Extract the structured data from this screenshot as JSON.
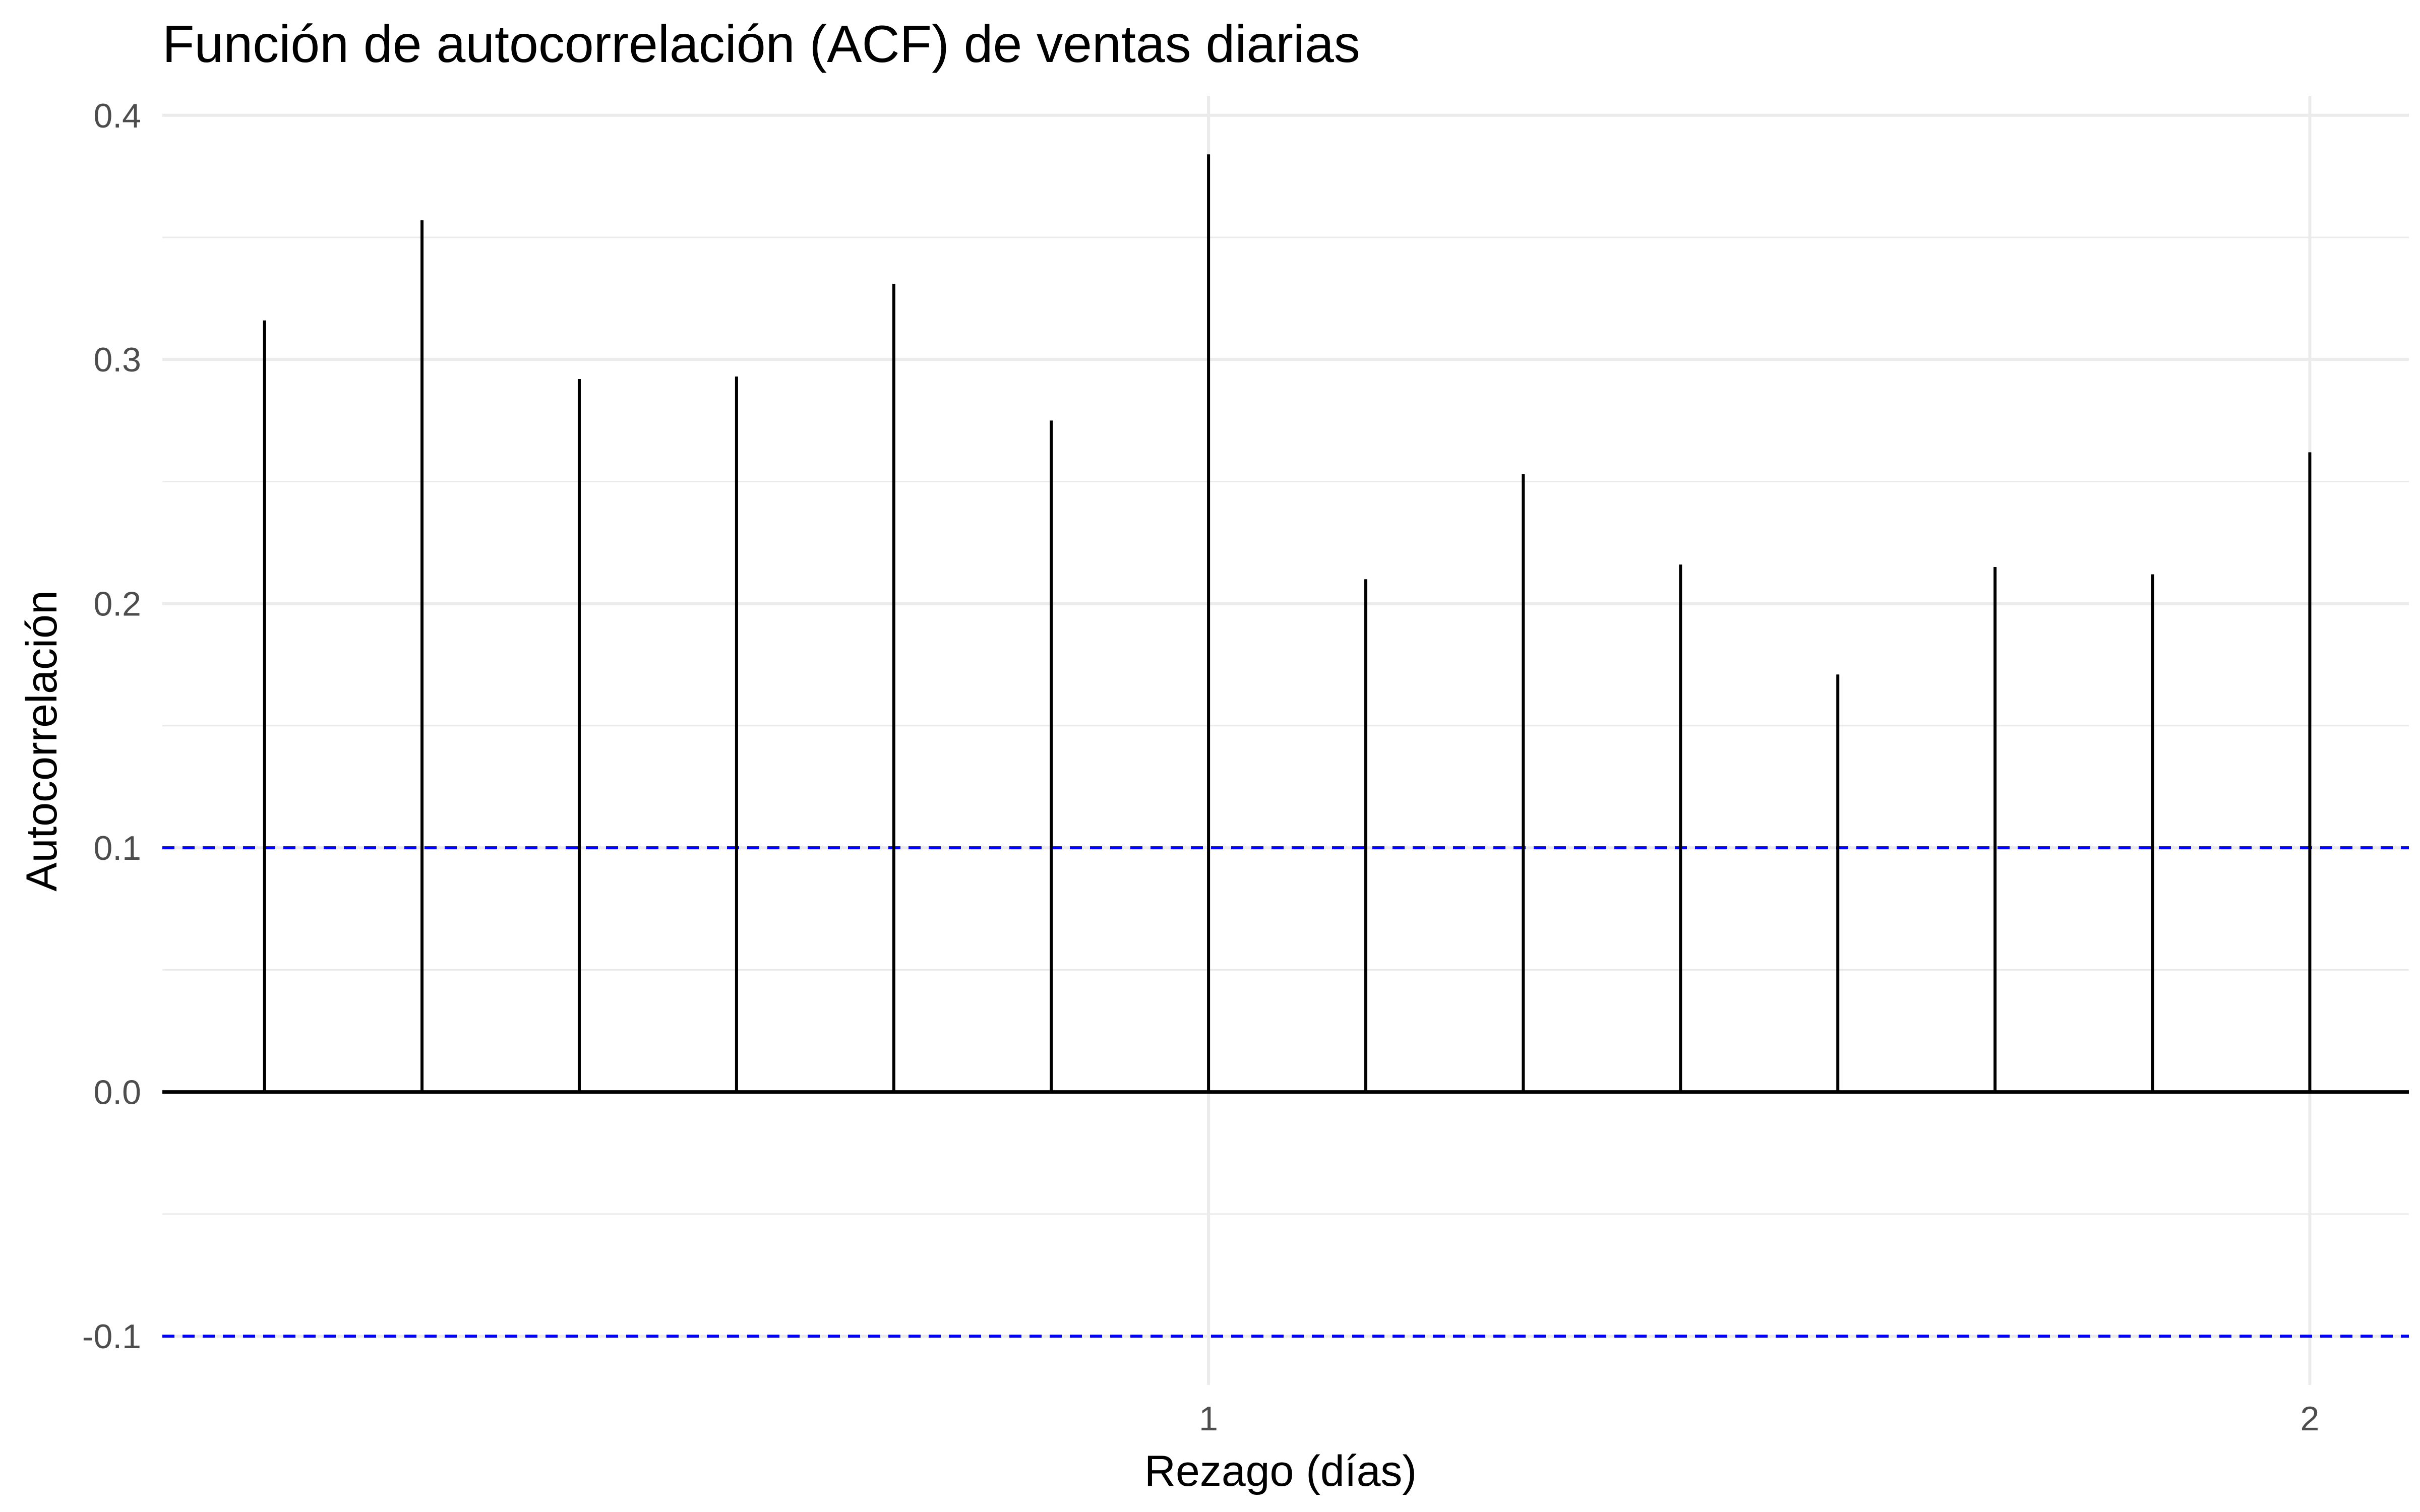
{
  "chart_data": {
    "type": "bar",
    "title": "Función de autocorrelación (ACF) de ventas diarias",
    "xlabel": "Rezago (días)",
    "ylabel": "Autocorrelación",
    "x": [
      0.0714,
      0.1429,
      0.2143,
      0.2857,
      0.3571,
      0.4286,
      0.5,
      0.5714,
      0.6429,
      0.7143,
      0.7857,
      0.8571,
      0.9286,
      1.0
    ],
    "values": [
      0.316,
      0.357,
      0.292,
      0.293,
      0.331,
      0.275,
      0.384,
      0.21,
      0.253,
      0.216,
      0.171,
      0.215,
      0.212,
      0.262
    ],
    "x_ticks": [
      0.5,
      1.0
    ],
    "x_tick_labels": [
      "1",
      "2"
    ],
    "y_ticks": [
      -0.1,
      0.0,
      0.1,
      0.2,
      0.3,
      0.4
    ],
    "y_tick_labels": [
      "-0.1",
      "0.0",
      "0.1",
      "0.2",
      "0.3",
      "0.4"
    ],
    "ylim": [
      -0.12,
      0.408
    ],
    "xlim": [
      0.025,
      1.045
    ],
    "confidence_bounds": [
      0.1,
      -0.1
    ],
    "grid": true,
    "colors": {
      "bars": "#000000",
      "bounds": "#0000ff",
      "grid": "#ebebeb",
      "zero_line": "#000000"
    }
  }
}
